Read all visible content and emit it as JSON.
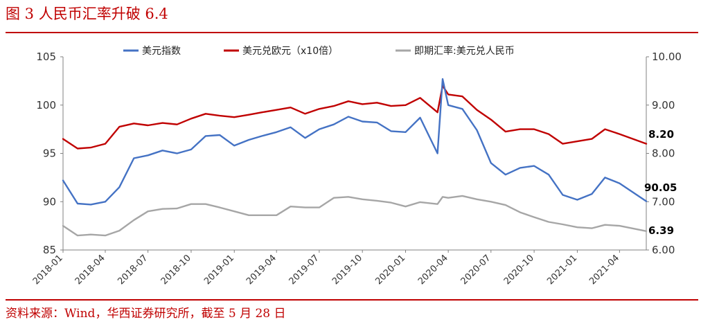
{
  "figure": {
    "title": "图 3  人民币汇率升破 6.4",
    "source": "资料来源：Wind，华西证券研究所，截至 5 月 28 日"
  },
  "chart_data": {
    "type": "line",
    "title": "",
    "xlabel": "",
    "ylabel_left": "",
    "ylabel_right": "",
    "x_ticks": [
      "2018-01",
      "2018-04",
      "2018-07",
      "2018-10",
      "2019-01",
      "2019-04",
      "2019-07",
      "2019-10",
      "2020-01",
      "2020-04",
      "2020-07",
      "2020-10",
      "2021-01",
      "2021-04"
    ],
    "left_axis": {
      "min": 85,
      "max": 105,
      "ticks": [
        "85",
        "90",
        "95",
        "100",
        "105"
      ]
    },
    "right_axis": {
      "min": 6.0,
      "max": 10.0,
      "ticks": [
        "6.00",
        "7.00",
        "8.00",
        "9.00",
        "10.00"
      ]
    },
    "legend_position": "top",
    "grid": false,
    "end_labels": [
      "8.20",
      "90.05",
      "6.39"
    ],
    "series": [
      {
        "name": "美元指数",
        "axis": "left",
        "color": "#4472c4",
        "x": [
          "2018-01",
          "2018-02",
          "2018-03",
          "2018-04",
          "2018-05",
          "2018-06",
          "2018-07",
          "2018-08",
          "2018-09",
          "2018-10",
          "2018-11",
          "2018-12",
          "2019-01",
          "2019-02",
          "2019-03",
          "2019-04",
          "2019-05",
          "2019-06",
          "2019-07",
          "2019-08",
          "2019-09",
          "2019-10",
          "2019-11",
          "2019-12",
          "2020-01",
          "2020-02",
          "2020-03-09",
          "2020-03-20",
          "2020-04",
          "2020-05",
          "2020-06",
          "2020-07",
          "2020-08",
          "2020-09",
          "2020-10",
          "2020-11",
          "2020-12",
          "2021-01",
          "2021-02",
          "2021-03",
          "2021-04",
          "2021-05-28"
        ],
        "values": [
          92.2,
          89.8,
          89.7,
          90.0,
          91.5,
          94.5,
          94.8,
          95.3,
          95.0,
          95.4,
          96.8,
          96.9,
          95.8,
          96.4,
          96.8,
          97.2,
          97.7,
          96.6,
          97.5,
          98.0,
          98.8,
          98.3,
          98.2,
          97.3,
          97.2,
          98.7,
          95.0,
          102.7,
          100.0,
          99.6,
          97.4,
          94.0,
          92.8,
          93.5,
          93.7,
          92.8,
          90.7,
          90.2,
          90.8,
          92.5,
          91.9,
          90.05
        ]
      },
      {
        "name": "美元兑欧元（x10倍）",
        "axis": "right",
        "color": "#c00000",
        "x": [
          "2018-01",
          "2018-02",
          "2018-03",
          "2018-04",
          "2018-05",
          "2018-06",
          "2018-07",
          "2018-08",
          "2018-09",
          "2018-10",
          "2018-11",
          "2018-12",
          "2019-01",
          "2019-02",
          "2019-03",
          "2019-04",
          "2019-05",
          "2019-06",
          "2019-07",
          "2019-08",
          "2019-09",
          "2019-10",
          "2019-11",
          "2019-12",
          "2020-01",
          "2020-02",
          "2020-03-09",
          "2020-03-20",
          "2020-04",
          "2020-05",
          "2020-06",
          "2020-07",
          "2020-08",
          "2020-09",
          "2020-10",
          "2020-11",
          "2020-12",
          "2021-01",
          "2021-02",
          "2021-03",
          "2021-04",
          "2021-05-28"
        ],
        "values": [
          8.3,
          8.1,
          8.12,
          8.2,
          8.55,
          8.62,
          8.58,
          8.63,
          8.6,
          8.72,
          8.82,
          8.78,
          8.75,
          8.8,
          8.85,
          8.9,
          8.95,
          8.82,
          8.92,
          8.98,
          9.08,
          9.02,
          9.05,
          8.98,
          9.0,
          9.15,
          8.85,
          9.4,
          9.22,
          9.18,
          8.9,
          8.7,
          8.45,
          8.5,
          8.5,
          8.4,
          8.2,
          8.25,
          8.3,
          8.5,
          8.4,
          8.2
        ]
      },
      {
        "name": "即期汇率:美元兑人民币",
        "axis": "right",
        "color": "#a6a6a6",
        "x": [
          "2018-01",
          "2018-02",
          "2018-03",
          "2018-04",
          "2018-05",
          "2018-06",
          "2018-07",
          "2018-08",
          "2018-09",
          "2018-10",
          "2018-11",
          "2018-12",
          "2019-01",
          "2019-02",
          "2019-03",
          "2019-04",
          "2019-05",
          "2019-06",
          "2019-07",
          "2019-08",
          "2019-09",
          "2019-10",
          "2019-11",
          "2019-12",
          "2020-01",
          "2020-02",
          "2020-03-09",
          "2020-03-20",
          "2020-04",
          "2020-05",
          "2020-06",
          "2020-07",
          "2020-08",
          "2020-09",
          "2020-10",
          "2020-11",
          "2020-12",
          "2021-01",
          "2021-02",
          "2021-03",
          "2021-04",
          "2021-05-28"
        ],
        "values": [
          6.5,
          6.3,
          6.32,
          6.3,
          6.4,
          6.62,
          6.8,
          6.85,
          6.86,
          6.95,
          6.95,
          6.88,
          6.8,
          6.72,
          6.72,
          6.72,
          6.9,
          6.88,
          6.88,
          7.08,
          7.1,
          7.05,
          7.02,
          6.98,
          6.9,
          6.99,
          6.95,
          7.1,
          7.08,
          7.12,
          7.05,
          7.0,
          6.93,
          6.78,
          6.68,
          6.58,
          6.53,
          6.47,
          6.45,
          6.52,
          6.5,
          6.39
        ]
      }
    ]
  }
}
